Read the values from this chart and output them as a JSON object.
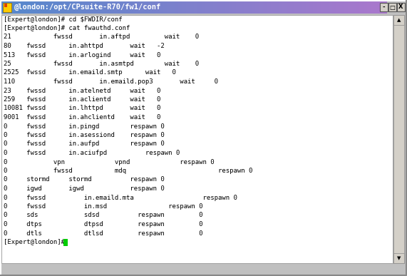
{
  "title_bar": "@london:/opt/CPsuite-R70/fw1/conf",
  "title_bar_fg": "#ffffff",
  "terminal_fg": "#000000",
  "font_family": "monospace",
  "font_size": 6.5,
  "title_font_size": 7.5,
  "lines": [
    "[Expert@london]# cd $FWDIR/conf",
    "[Expert@london]# cat fwauthd.conf",
    "21           fwssd       in.aftpd         wait    0",
    "80    fwssd      in.ahttpd       wait   -2",
    "513   fwssd      in.arlogind     wait   0",
    "25           fwssd       in.asmtpd        wait    0",
    "2525  fwssd      in.emaild.smtp      wait   0",
    "110          fwssd       in.emaild.pop3       wait     0",
    "23    fwssd      in.atelnetd     wait   0",
    "259   fwssd      in.aclientd     wait   0",
    "10081 fwssd      in.lhttpd       wait   0",
    "9001  fwssd      in.ahclientd    wait   0",
    "0     fwssd      in.pingd        respawn 0",
    "0     fwssd      in.asessiond    respawn 0",
    "0     fwssd      in.aufpd        respawn 0",
    "0     fwssd      in.aciufpd          respawn 0",
    "0            vpn             vpnd             respawn 0",
    "0            fwssd           mdq                        respawn 0",
    "0     stormd     stormd          respawn 0",
    "0     igwd       igwd            respawn 0",
    "0     fwssd          in.emaild.mta                  respawn 0",
    "0     fwssd          in.msd                respawn 0",
    "0     sds            sdsd          respawn         0",
    "0     dtps           dtpsd         respawn         0",
    "0     dtls           dtlsd         respawn         0",
    "[Expert@london]# "
  ],
  "cursor_line": 25,
  "cursor_color": "#00cc00",
  "title_bar_gradient_left": "#7799cc",
  "title_bar_gradient_right": "#9966bb",
  "win_border_light": "#ffffff",
  "win_border_dark": "#888888",
  "scrollbar_bg": "#d4d0c8",
  "btn_bg": "#d4d0c8",
  "terminal_bg": "#ffffff",
  "outer_bg": "#c0c0c0",
  "icon_yellow": "#ffcc00",
  "icon_red": "#dd4400"
}
